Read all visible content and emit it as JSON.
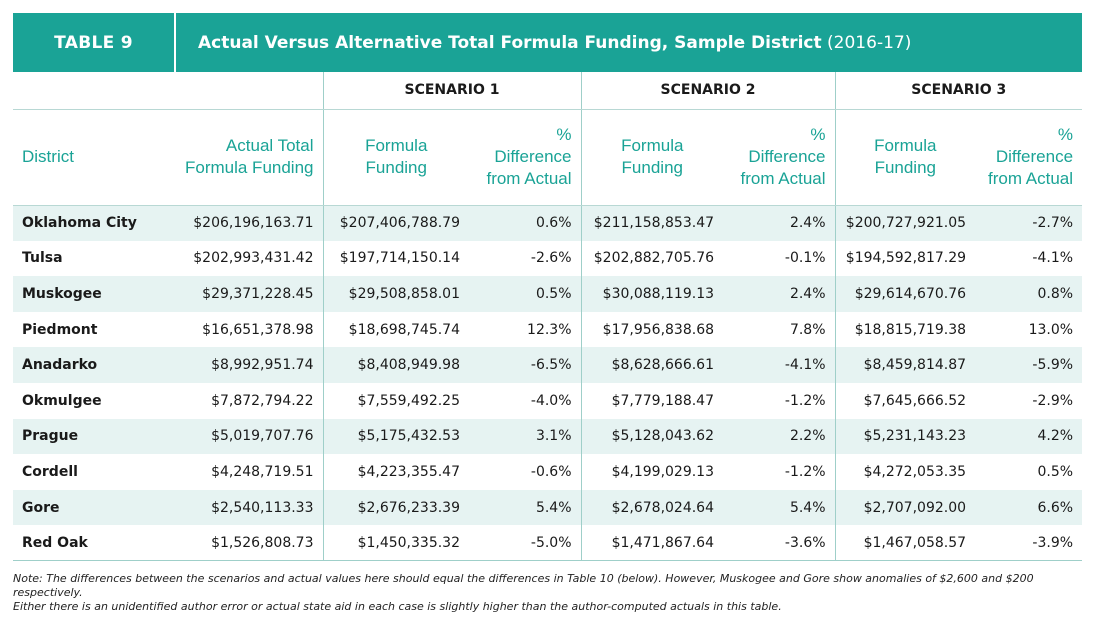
{
  "title_bar": {
    "tag": "TABLE 9",
    "title": "Actual Versus Alternative Total Formula Funding, Sample District",
    "year": "(2016-17)"
  },
  "scenarios": [
    "SCENARIO 1",
    "SCENARIO 2",
    "SCENARIO 3"
  ],
  "headers": {
    "district": "District",
    "actual_1": "Actual Total",
    "actual_2": "Formula Funding",
    "formula": "Formula Funding",
    "diff_1": "%",
    "diff_2": "Difference",
    "diff_3": "from Actual"
  },
  "rows": [
    {
      "district": "Oklahoma City",
      "actual": "$206,196,163.71",
      "s1": "$207,406,788.79",
      "d1": "0.6%",
      "s2": "$211,158,853.47",
      "d2": "2.4%",
      "s3": "$200,727,921.05",
      "d3": "-2.7%"
    },
    {
      "district": "Tulsa",
      "actual": "$202,993,431.42",
      "s1": "$197,714,150.14",
      "d1": "-2.6%",
      "s2": "$202,882,705.76",
      "d2": "-0.1%",
      "s3": "$194,592,817.29",
      "d3": "-4.1%"
    },
    {
      "district": "Muskogee",
      "actual": "$29,371,228.45",
      "s1": "$29,508,858.01",
      "d1": "0.5%",
      "s2": "$30,088,119.13",
      "d2": "2.4%",
      "s3": "$29,614,670.76",
      "d3": "0.8%"
    },
    {
      "district": "Piedmont",
      "actual": "$16,651,378.98",
      "s1": "$18,698,745.74",
      "d1": "12.3%",
      "s2": "$17,956,838.68",
      "d2": "7.8%",
      "s3": "$18,815,719.38",
      "d3": "13.0%"
    },
    {
      "district": "Anadarko",
      "actual": "$8,992,951.74",
      "s1": "$8,408,949.98",
      "d1": "-6.5%",
      "s2": "$8,628,666.61",
      "d2": "-4.1%",
      "s3": "$8,459,814.87",
      "d3": "-5.9%"
    },
    {
      "district": "Okmulgee",
      "actual": "$7,872,794.22",
      "s1": "$7,559,492.25",
      "d1": "-4.0%",
      "s2": "$7,779,188.47",
      "d2": "-1.2%",
      "s3": "$7,645,666.52",
      "d3": "-2.9%"
    },
    {
      "district": "Prague",
      "actual": "$5,019,707.76",
      "s1": "$5,175,432.53",
      "d1": "3.1%",
      "s2": "$5,128,043.62",
      "d2": "2.2%",
      "s3": "$5,231,143.23",
      "d3": "4.2%"
    },
    {
      "district": "Cordell",
      "actual": "$4,248,719.51",
      "s1": "$4,223,355.47",
      "d1": "-0.6%",
      "s2": "$4,199,029.13",
      "d2": "-1.2%",
      "s3": "$4,272,053.35",
      "d3": "0.5%"
    },
    {
      "district": "Gore",
      "actual": "$2,540,113.33",
      "s1": "$2,676,233.39",
      "d1": "5.4%",
      "s2": "$2,678,024.64",
      "d2": "5.4%",
      "s3": "$2,707,092.00",
      "d3": "6.6%"
    },
    {
      "district": "Red Oak",
      "actual": "$1,526,808.73",
      "s1": "$1,450,335.32",
      "d1": "-5.0%",
      "s2": "$1,471,867.64",
      "d2": "-3.6%",
      "s3": "$1,467,058.57",
      "d3": "-3.9%"
    }
  ],
  "note": {
    "line1": "Note: The differences between the scenarios and actual values here should equal the differences in Table 10 (below). However, Muskogee and Gore show anomalies of $2,600 and $200 respectively.",
    "line2": "Either there is an unidentified author error or actual state aid in each case is slightly higher than the author-computed actuals in this table."
  },
  "colors": {
    "accent": "#1aa396",
    "row_shade": "#e6f3f2"
  }
}
